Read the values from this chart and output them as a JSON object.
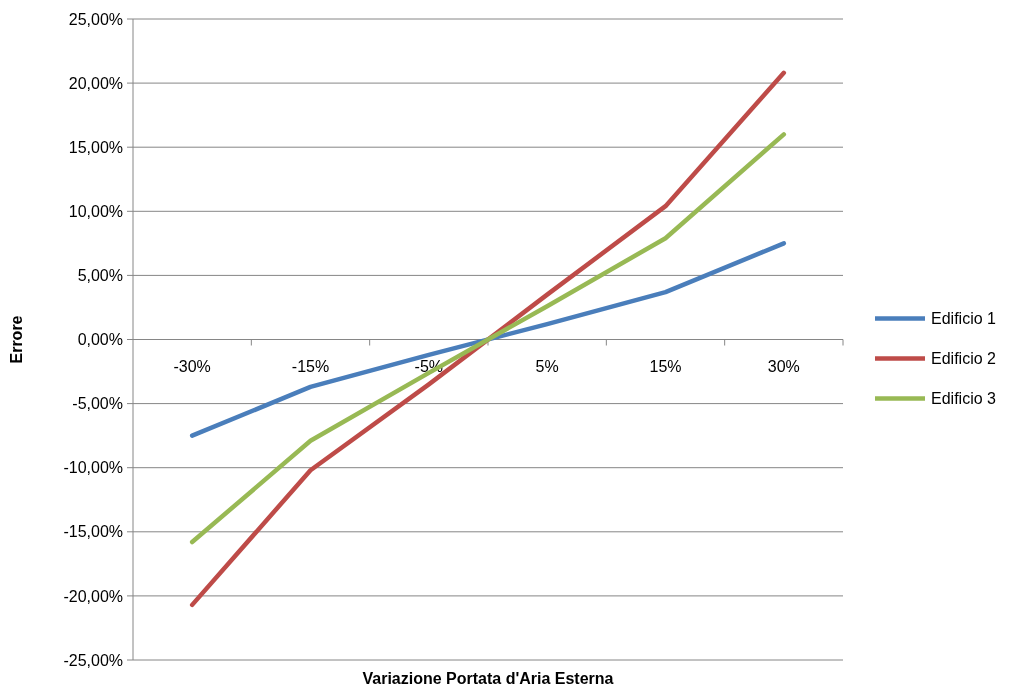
{
  "chart_data": {
    "type": "line",
    "xlabel": "Variazione Portata d'Aria Esterna",
    "ylabel": "Errore",
    "categories": [
      "-30%",
      "-15%",
      "-5%",
      "5%",
      "15%",
      "30%"
    ],
    "series": [
      {
        "name": "Edificio 1",
        "color": "#4a7ebb",
        "values": [
          -7.5,
          -3.7,
          -1.2,
          1.2,
          3.7,
          7.5
        ]
      },
      {
        "name": "Edificio 2",
        "color": "#be4b48",
        "values": [
          -20.7,
          -10.2,
          -3.5,
          3.5,
          10.4,
          20.8
        ]
      },
      {
        "name": "Edificio 3",
        "color": "#98b954",
        "values": [
          -15.8,
          -7.9,
          -2.6,
          2.6,
          7.9,
          16.0
        ]
      }
    ],
    "ylim": [
      -25,
      25
    ],
    "yticks": [
      {
        "value": -25,
        "label": "-25,00%"
      },
      {
        "value": -20,
        "label": "-20,00%"
      },
      {
        "value": -15,
        "label": "-15,00%"
      },
      {
        "value": -10,
        "label": "-10,00%"
      },
      {
        "value": -5,
        "label": "-5,00%"
      },
      {
        "value": 0,
        "label": "0,00%"
      },
      {
        "value": 5,
        "label": "5,00%"
      },
      {
        "value": 10,
        "label": "10,00%"
      },
      {
        "value": 15,
        "label": "15,00%"
      },
      {
        "value": 20,
        "label": "20,00%"
      },
      {
        "value": 25,
        "label": "25,00%"
      }
    ],
    "grid": "y",
    "legend": "right",
    "marker": "none",
    "line_style": "solid"
  }
}
